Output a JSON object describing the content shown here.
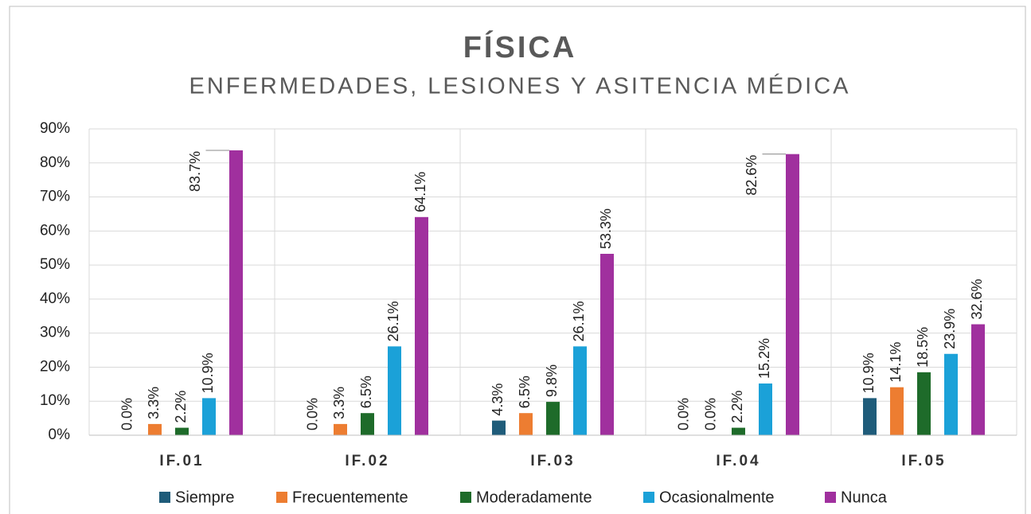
{
  "chart_data": {
    "type": "bar",
    "title": "FÍSICA",
    "subtitle": "ENFERMEDADES, LESIONES Y ASITENCIA MÉDICA",
    "categories": [
      "IF.01",
      "IF.02",
      "IF.03",
      "IF.04",
      "IF.05"
    ],
    "series": [
      {
        "name": "Siempre",
        "color": "#1f5c7a",
        "values": [
          0.0,
          0.0,
          4.3,
          0.0,
          10.9
        ],
        "value_labels": [
          "0.0%",
          "0.0%",
          "4.3%",
          "0.0%",
          "10.9%"
        ]
      },
      {
        "name": "Frecuentemente",
        "color": "#ed7d31",
        "values": [
          3.3,
          3.3,
          6.5,
          0.0,
          14.1
        ],
        "value_labels": [
          "3.3%",
          "3.3%",
          "6.5%",
          "0.0%",
          "14.1%"
        ]
      },
      {
        "name": "Moderadamente",
        "color": "#1e6b2a",
        "values": [
          2.2,
          6.5,
          9.8,
          2.2,
          18.5
        ],
        "value_labels": [
          "2.2%",
          "6.5%",
          "9.8%",
          "2.2%",
          "18.5%"
        ]
      },
      {
        "name": "Ocasionalmente",
        "color": "#1ba1d8",
        "values": [
          10.9,
          26.1,
          26.1,
          15.2,
          23.9
        ],
        "value_labels": [
          "10.9%",
          "26.1%",
          "26.1%",
          "15.2%",
          "23.9%"
        ]
      },
      {
        "name": "Nunca",
        "color": "#a0309e",
        "values": [
          83.7,
          64.1,
          53.3,
          82.6,
          32.6
        ],
        "value_labels": [
          "83.7%",
          "64.1%",
          "53.3%",
          "82.6%",
          "32.6%"
        ]
      }
    ],
    "ylim": [
      0,
      90
    ],
    "yticks": [
      {
        "value": 0,
        "label": "0%"
      },
      {
        "value": 10,
        "label": "10%"
      },
      {
        "value": 20,
        "label": "20%"
      },
      {
        "value": 30,
        "label": "30%"
      },
      {
        "value": 40,
        "label": "40%"
      },
      {
        "value": 50,
        "label": "50%"
      },
      {
        "value": 60,
        "label": "60%"
      },
      {
        "value": 70,
        "label": "70%"
      },
      {
        "value": 80,
        "label": "80%"
      },
      {
        "value": 90,
        "label": "90%"
      }
    ],
    "grid": true,
    "legend": "bottom"
  }
}
